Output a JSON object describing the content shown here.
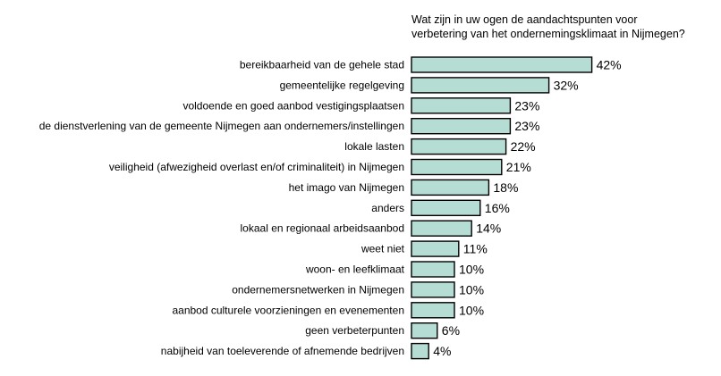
{
  "chart_data": {
    "type": "bar",
    "orientation": "horizontal",
    "title_lines": [
      "Wat zijn in uw ogen de aandachtspunten voor",
      "verbetering van het ondernemingsklimaat in Nijmegen?"
    ],
    "unit": "%",
    "bar_color": "#b5ddd3",
    "categories": [
      "bereikbaarheid van de gehele stad",
      "gemeentelijke regelgeving",
      "voldoende en goed aanbod vestigingsplaatsen",
      "de dienstverlening van de gemeente Nijmegen aan ondernemers/instellingen",
      "lokale lasten",
      "veiligheid (afwezigheid overlast en/of criminaliteit) in Nijmegen",
      "het imago van Nijmegen",
      "anders",
      "lokaal en regionaal arbeidsaanbod",
      "weet niet",
      "woon- en leefklimaat",
      "ondernemersnetwerken in Nijmegen",
      "aanbod culturele voorzieningen en evenementen",
      "geen verbeterpunten",
      "nabijheid van toeleverende of afnemende bedrijven"
    ],
    "values": [
      42,
      32,
      23,
      23,
      22,
      21,
      18,
      16,
      14,
      11,
      10,
      10,
      10,
      6,
      4
    ],
    "value_labels": [
      "42%",
      "32%",
      "23%",
      "23%",
      "22%",
      "21%",
      "18%",
      "16%",
      "14%",
      "11%",
      "10%",
      "10%",
      "10%",
      "6%",
      "4%"
    ]
  }
}
